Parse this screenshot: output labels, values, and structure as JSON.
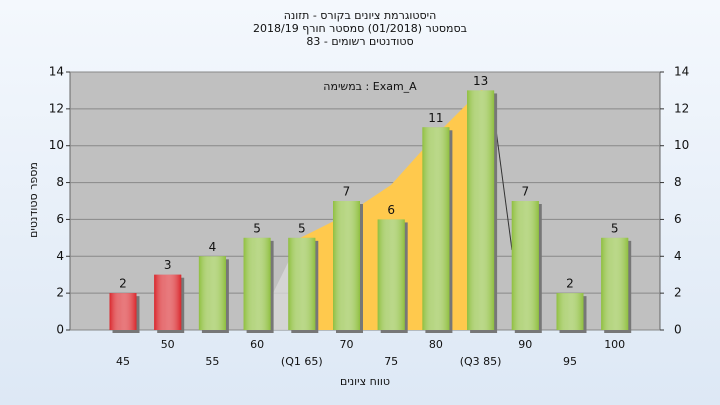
{
  "chart_data": {
    "type": "bar",
    "title": "היסטוגרמת ציונים בקורס - תזונה",
    "subtitle": "בסמסטר (01/2018) סמסטר חורף 2018/19",
    "subtitle2": "סטודנטים רשומים - 83",
    "annotation": "במשימה : Exam_A",
    "x_label": "טווח ציונים",
    "y_label": "מספר סטודנטים",
    "categories": [
      "45",
      "50",
      "55",
      "60",
      "(Q1 65)",
      "70",
      "75",
      "80",
      "(Q3 85)",
      "90",
      "95",
      "100"
    ],
    "values": [
      2,
      3,
      4,
      5,
      5,
      7,
      6,
      11,
      13,
      7,
      2,
      5
    ],
    "colors": [
      "#d9262b",
      "#d9262b",
      "#8fbf3f",
      "#8fbf3f",
      "#8fbf3f",
      "#8fbf3f",
      "#8fbf3f",
      "#8fbf3f",
      "#8fbf3f",
      "#8fbf3f",
      "#8fbf3f",
      "#8fbf3f"
    ],
    "ylim": [
      0,
      14
    ],
    "yticks": [
      0,
      2,
      4,
      6,
      8,
      10,
      12,
      14
    ],
    "grid": true
  }
}
